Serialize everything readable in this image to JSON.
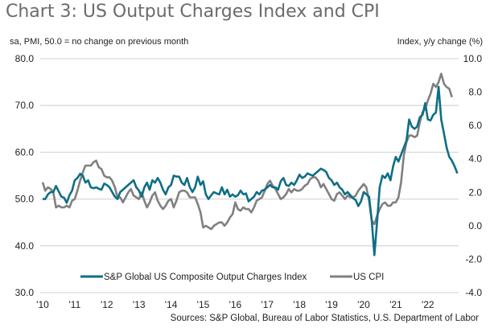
{
  "chart_data": {
    "type": "line",
    "title": "Chart 3: US Output Charges Index and CPI",
    "left_axis_label": "sa, PMI, 50.0 = no change on previous month",
    "right_axis_label": "Index, y/y change (%)",
    "source": "Sources: S&P Global, Bureau of Labor Statistics, U.S. Department of Labor",
    "x_start": "2010-01",
    "x_frequency": "monthly",
    "x_tick_labels": [
      "'10",
      "'11",
      "'12",
      "'13",
      "'14",
      "'15",
      "'16",
      "'17",
      "'18",
      "'19",
      "'20",
      "'21",
      "'22"
    ],
    "y_left": {
      "min": 30,
      "max": 80,
      "ticks": [
        "30.0",
        "40.0",
        "50.0",
        "60.0",
        "70.0",
        "80.0"
      ]
    },
    "y_right": {
      "min": -4,
      "max": 10,
      "ticks": [
        "-4.0",
        "-2.0",
        "0.0",
        "2.0",
        "4.0",
        "6.0",
        "8.0",
        "10.0"
      ]
    },
    "grid": true,
    "legend_position": "bottom",
    "series": [
      {
        "name": "S&P Global US Composite Output Charges Index",
        "axis": "left",
        "color": "#0f6e86",
        "values": [
          50.0,
          50.0,
          51.0,
          51.5,
          51.5,
          52.8,
          51.6,
          50.5,
          50.3,
          49.2,
          50.8,
          51.8,
          54.0,
          54.5,
          55.4,
          55.0,
          53.5,
          54.0,
          52.5,
          52.3,
          52.5,
          52.2,
          52.0,
          53.3,
          53.0,
          52.5,
          51.5,
          50.5,
          50.0,
          51.5,
          52.0,
          52.5,
          53.0,
          53.5,
          54.0,
          52.5,
          51.8,
          50.5,
          52.5,
          53.5,
          52.0,
          54.0,
          53.5,
          54.5,
          53.5,
          52.0,
          51.0,
          52.5,
          53.0,
          55.0,
          54.8,
          54.8,
          53.5,
          53.0,
          54.5,
          52.5,
          51.5,
          52.5,
          54.8,
          53.0,
          53.8,
          51.0,
          50.0,
          50.8,
          51.5,
          51.2,
          51.0,
          52.5,
          51.0,
          52.0,
          50.5,
          51.0,
          50.5,
          50.8,
          51.8,
          51.0,
          51.2,
          49.5,
          50.0,
          50.5,
          51.5,
          51.0,
          51.8,
          52.0,
          52.5,
          53.0,
          52.5,
          52.5,
          52.0,
          53.8,
          54.5,
          53.0,
          52.8,
          53.5,
          53.0,
          54.0,
          55.2,
          54.5,
          54.8,
          55.5,
          55.2,
          55.0,
          55.5,
          56.0,
          56.5,
          56.2,
          55.8,
          54.5,
          54.0,
          53.0,
          53.5,
          52.5,
          52.0,
          51.0,
          51.5,
          50.8,
          50.2,
          49.8,
          48.5,
          49.5,
          51.5,
          51.0,
          50.5,
          45.5,
          38.0,
          45.0,
          52.5,
          55.0,
          54.5,
          55.5,
          54.0,
          57.0,
          59.0,
          58.0,
          59.5,
          61.0,
          62.5,
          67.0,
          65.5,
          65.0,
          65.5,
          67.5,
          68.0,
          70.5,
          67.0,
          66.8,
          68.0,
          68.5,
          74.0,
          67.0,
          64.0,
          61.0,
          59.0,
          58.2,
          57.0,
          55.5
        ]
      },
      {
        "name": "US CPI",
        "axis": "right",
        "color": "#808080",
        "values": [
          2.6,
          2.1,
          2.3,
          2.2,
          2.0,
          1.1,
          1.2,
          1.1,
          1.1,
          1.2,
          1.1,
          1.5,
          1.6,
          2.1,
          2.7,
          3.2,
          3.6,
          3.6,
          3.6,
          3.8,
          3.9,
          3.5,
          3.4,
          3.0,
          2.9,
          2.9,
          2.7,
          2.3,
          1.7,
          1.7,
          1.4,
          1.7,
          2.0,
          2.2,
          1.8,
          1.7,
          1.6,
          2.0,
          1.5,
          1.1,
          1.4,
          1.8,
          2.0,
          1.5,
          1.2,
          1.0,
          1.2,
          1.5,
          1.6,
          1.1,
          1.5,
          2.0,
          2.1,
          2.1,
          2.0,
          1.7,
          1.7,
          1.7,
          1.3,
          0.8,
          -0.1,
          0.0,
          -0.1,
          -0.2,
          0.0,
          0.1,
          0.2,
          0.2,
          0.0,
          0.2,
          0.5,
          0.7,
          1.4,
          1.0,
          0.9,
          1.1,
          1.0,
          1.0,
          0.8,
          1.1,
          1.5,
          1.6,
          1.7,
          2.1,
          2.5,
          2.7,
          2.4,
          2.2,
          1.9,
          1.6,
          1.7,
          1.9,
          2.2,
          2.0,
          2.2,
          2.1,
          2.1,
          2.2,
          2.4,
          2.5,
          2.8,
          2.9,
          2.9,
          2.7,
          2.3,
          2.5,
          2.2,
          1.9,
          1.6,
          1.5,
          1.9,
          2.0,
          1.8,
          1.6,
          1.8,
          1.7,
          1.7,
          1.8,
          2.1,
          2.3,
          2.5,
          2.3,
          1.5,
          0.3,
          0.1,
          0.6,
          1.0,
          1.3,
          1.4,
          1.2,
          1.2,
          1.4,
          1.4,
          1.7,
          2.6,
          4.2,
          5.0,
          5.4,
          5.4,
          5.3,
          5.4,
          6.2,
          6.8,
          7.0,
          7.5,
          7.9,
          8.5,
          8.3,
          8.6,
          9.1,
          8.5,
          8.3,
          8.2,
          7.7
        ]
      }
    ]
  }
}
